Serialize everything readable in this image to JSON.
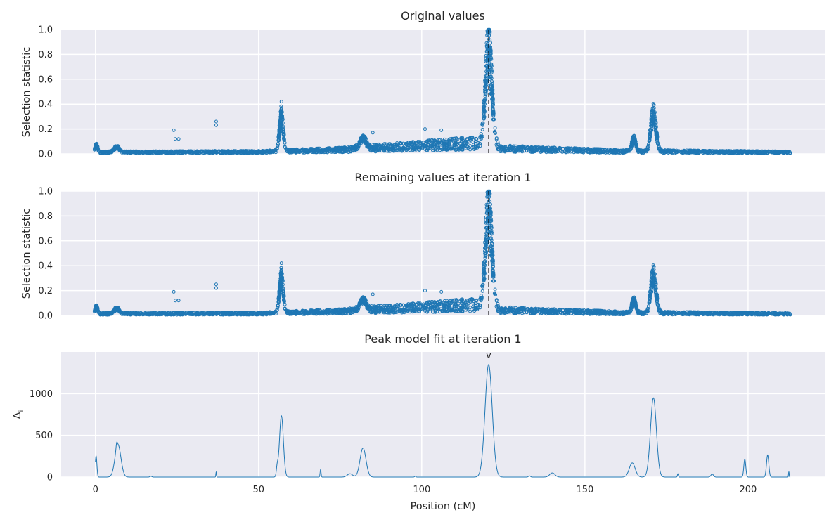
{
  "chart_data": [
    {
      "type": "scatter",
      "title": "Original values",
      "xlabel": "",
      "ylabel": "Selection statistic",
      "xlim": [
        -10.5,
        223.5
      ],
      "ylim": [
        0,
        1.0
      ],
      "yticks": [
        "0.0",
        "0.2",
        "0.4",
        "0.6",
        "0.8",
        "1.0"
      ],
      "grid": true,
      "marker_color": "#1f77b4",
      "peak_marker_x": 120.5,
      "background_level": {
        "segments": [
          [
            0,
            0.012
          ],
          [
            50,
            0.015
          ],
          [
            58,
            0.02
          ],
          [
            75,
            0.03
          ],
          [
            90,
            0.05
          ],
          [
            115,
            0.08
          ],
          [
            125,
            0.04
          ],
          [
            160,
            0.02
          ],
          [
            213,
            0.012
          ]
        ]
      },
      "peaks": [
        {
          "x": 0.3,
          "height": 0.07,
          "width": 0.4
        },
        {
          "x": 6.5,
          "height": 0.05,
          "width": 0.8
        },
        {
          "x": 57,
          "height": 0.35,
          "width": 0.6
        },
        {
          "x": 82,
          "height": 0.11,
          "width": 1.0
        },
        {
          "x": 120.5,
          "height": 0.98,
          "width": 1.0
        },
        {
          "x": 165,
          "height": 0.13,
          "width": 0.6
        },
        {
          "x": 171,
          "height": 0.37,
          "width": 0.8
        }
      ],
      "outliers": [
        [
          24,
          0.19
        ],
        [
          24.5,
          0.12
        ],
        [
          25.5,
          0.12
        ],
        [
          37,
          0.26
        ],
        [
          37,
          0.23
        ],
        [
          57,
          0.42
        ],
        [
          85,
          0.17
        ],
        [
          101,
          0.2
        ],
        [
          106,
          0.19
        ],
        [
          171,
          0.39
        ]
      ],
      "x_range": [
        0,
        213
      ]
    },
    {
      "type": "scatter",
      "title": "Remaining values at iteration 1",
      "xlabel": "",
      "ylabel": "Selection statistic",
      "xlim": [
        -10.5,
        223.5
      ],
      "ylim": [
        0,
        1.0
      ],
      "yticks": [
        "0.0",
        "0.2",
        "0.4",
        "0.6",
        "0.8",
        "1.0"
      ],
      "grid": true,
      "marker_color": "#1f77b4",
      "peak_marker_x": 120.5,
      "background_level": {
        "segments": [
          [
            0,
            0.012
          ],
          [
            50,
            0.015
          ],
          [
            58,
            0.02
          ],
          [
            75,
            0.03
          ],
          [
            90,
            0.05
          ],
          [
            115,
            0.08
          ],
          [
            125,
            0.04
          ],
          [
            160,
            0.02
          ],
          [
            213,
            0.012
          ]
        ]
      },
      "peaks": [
        {
          "x": 0.3,
          "height": 0.07,
          "width": 0.4
        },
        {
          "x": 6.5,
          "height": 0.05,
          "width": 0.8
        },
        {
          "x": 57,
          "height": 0.35,
          "width": 0.6
        },
        {
          "x": 82,
          "height": 0.11,
          "width": 1.0
        },
        {
          "x": 120.5,
          "height": 0.98,
          "width": 1.0
        },
        {
          "x": 165,
          "height": 0.13,
          "width": 0.6
        },
        {
          "x": 171,
          "height": 0.37,
          "width": 0.8
        }
      ],
      "outliers": [
        [
          24,
          0.19
        ],
        [
          24.5,
          0.12
        ],
        [
          25.5,
          0.12
        ],
        [
          37,
          0.25
        ],
        [
          37,
          0.22
        ],
        [
          57,
          0.42
        ],
        [
          85,
          0.17
        ],
        [
          101,
          0.2
        ],
        [
          106,
          0.19
        ],
        [
          171,
          0.39
        ]
      ],
      "x_range": [
        0,
        213
      ]
    },
    {
      "type": "line",
      "title": "Peak model fit at iteration 1",
      "xlabel": "Position (cM)",
      "ylabel": "Δ",
      "ylabel_subscript": "i",
      "xlim": [
        -10.5,
        223.5
      ],
      "ylim": [
        0,
        1500
      ],
      "xticks": [
        "0",
        "50",
        "100",
        "150",
        "200"
      ],
      "xtick_values": [
        0,
        50,
        100,
        150,
        200
      ],
      "yticks": [
        "0",
        "500",
        "1000"
      ],
      "ytick_values": [
        0,
        500,
        1000
      ],
      "grid": true,
      "line_color": "#1f77b4",
      "peak_marker_x": 120.5,
      "peak_marker_label": "v",
      "peaks": [
        {
          "x": 0.2,
          "height": 255,
          "width": 0.25
        },
        {
          "x": 6.5,
          "height": 60,
          "width": 0.2
        },
        {
          "x": 6.9,
          "height": 390,
          "width": 0.9
        },
        {
          "x": 17,
          "height": 10,
          "width": 0.3
        },
        {
          "x": 37,
          "height": 60,
          "width": 0.1
        },
        {
          "x": 55.7,
          "height": 100,
          "width": 0.25
        },
        {
          "x": 57,
          "height": 735,
          "width": 0.6
        },
        {
          "x": 69,
          "height": 90,
          "width": 0.15
        },
        {
          "x": 78,
          "height": 40,
          "width": 0.8
        },
        {
          "x": 82,
          "height": 350,
          "width": 0.9
        },
        {
          "x": 98,
          "height": 10,
          "width": 0.2
        },
        {
          "x": 120.5,
          "height": 1350,
          "width": 1.1
        },
        {
          "x": 133,
          "height": 15,
          "width": 0.3
        },
        {
          "x": 140,
          "height": 50,
          "width": 0.8
        },
        {
          "x": 164.5,
          "height": 170,
          "width": 0.9
        },
        {
          "x": 171,
          "height": 950,
          "width": 0.9
        },
        {
          "x": 178.5,
          "height": 40,
          "width": 0.15
        },
        {
          "x": 189,
          "height": 35,
          "width": 0.4
        },
        {
          "x": 199,
          "height": 215,
          "width": 0.3
        },
        {
          "x": 206,
          "height": 265,
          "width": 0.35
        },
        {
          "x": 212.5,
          "height": 65,
          "width": 0.1
        }
      ],
      "x_range": [
        0,
        213
      ]
    }
  ]
}
